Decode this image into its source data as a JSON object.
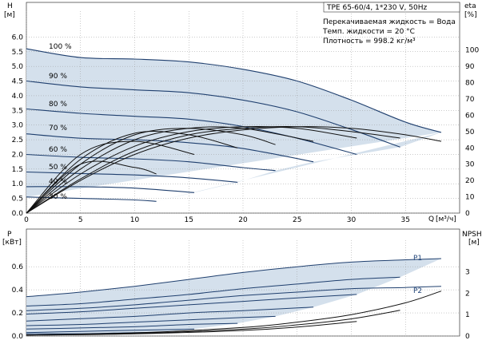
{
  "chart_data": [
    {
      "type": "line",
      "title": "TPE 65-60/4, 1*230 V, 50Hz",
      "ylabel": "H",
      "ylabel_unit": "[м]",
      "xlabel": "Q",
      "xlabel_unit": "[м³/ч]",
      "y2label": "eta",
      "y2label_unit": "[%]",
      "xlim": [
        0,
        40
      ],
      "ylim": [
        0,
        6.5
      ],
      "y2lim": [
        0,
        117
      ],
      "x_ticks": [
        "0",
        "5",
        "10",
        "15",
        "20",
        "25",
        "30",
        "35"
      ],
      "y_ticks": [
        "0.0",
        "0.5",
        "1.0",
        "1.5",
        "2.0",
        "2.5",
        "3.0",
        "3.5",
        "4.0",
        "4.5",
        "5.0",
        "5.5",
        "6.0"
      ],
      "y2_ticks": [
        "0",
        "10",
        "20",
        "30",
        "40",
        "50",
        "60",
        "70",
        "80",
        "90",
        "100"
      ],
      "grid": true,
      "info_lines": [
        "Перекачиваемая жидкость = Вода",
        "Темп. жидкости = 20 °C",
        "Плотность = 998.2 кг/м³"
      ],
      "speed_labels": [
        "100 %",
        "90 %",
        "80 %",
        "70 %",
        "60 %",
        "50 %",
        "40 %",
        "30 %"
      ],
      "series": [
        {
          "name": "100 %",
          "x": [
            0,
            5,
            10,
            15,
            20,
            25,
            30,
            35,
            38.3
          ],
          "y": [
            5.6,
            5.3,
            5.25,
            5.15,
            4.9,
            4.5,
            3.85,
            3.1,
            2.75
          ]
        },
        {
          "name": "90 %",
          "x": [
            0,
            5,
            10,
            15,
            20,
            25,
            30,
            34.5
          ],
          "y": [
            4.5,
            4.3,
            4.2,
            4.1,
            3.85,
            3.45,
            2.85,
            2.25
          ]
        },
        {
          "name": "80 %",
          "x": [
            0,
            5,
            10,
            15,
            20,
            25,
            30.5
          ],
          "y": [
            3.55,
            3.4,
            3.3,
            3.2,
            2.95,
            2.55,
            2.0
          ]
        },
        {
          "name": "70 %",
          "x": [
            0,
            5,
            10,
            15,
            20,
            26.5
          ],
          "y": [
            2.7,
            2.55,
            2.5,
            2.4,
            2.2,
            1.75
          ]
        },
        {
          "name": "60 %",
          "x": [
            0,
            5,
            10,
            15,
            20,
            23
          ],
          "y": [
            2.0,
            1.9,
            1.85,
            1.75,
            1.55,
            1.45
          ]
        },
        {
          "name": "50 %",
          "x": [
            0,
            5,
            10,
            15,
            19.5
          ],
          "y": [
            1.4,
            1.35,
            1.3,
            1.2,
            1.05
          ]
        },
        {
          "name": "40 %",
          "x": [
            0,
            5,
            10,
            15.5
          ],
          "y": [
            0.9,
            0.9,
            0.85,
            0.7
          ]
        },
        {
          "name": "30 %",
          "x": [
            0,
            5,
            10,
            12
          ],
          "y": [
            0.55,
            0.5,
            0.45,
            0.4
          ]
        }
      ],
      "eta_series": [
        {
          "name": "eta 100 %",
          "x": [
            0,
            5,
            10,
            15,
            20,
            25,
            30,
            35,
            38.3
          ],
          "y": [
            0,
            20,
            36,
            46,
            51,
            53,
            52,
            48,
            44
          ]
        },
        {
          "name": "eta 90 %",
          "x": [
            0,
            5,
            10,
            15,
            20,
            25,
            30,
            34.5
          ],
          "y": [
            0,
            21,
            38,
            48,
            52,
            53,
            50,
            46
          ]
        },
        {
          "name": "eta 80 %",
          "x": [
            0,
            5,
            10,
            15,
            20,
            25,
            30.5
          ],
          "y": [
            0,
            24,
            41,
            50,
            53,
            52,
            46
          ]
        },
        {
          "name": "eta 70 %",
          "x": [
            0,
            5,
            10,
            15,
            20,
            26.5
          ],
          "y": [
            0,
            27,
            45,
            52,
            52,
            44
          ]
        },
        {
          "name": "eta 60 %",
          "x": [
            0,
            5,
            10,
            15,
            20,
            23
          ],
          "y": [
            0,
            30,
            48,
            52,
            48,
            42
          ]
        },
        {
          "name": "eta 50 %",
          "x": [
            0,
            5,
            10,
            15,
            19.5
          ],
          "y": [
            0,
            33,
            49,
            48,
            40
          ]
        },
        {
          "name": "eta 40 %",
          "x": [
            0,
            5,
            10,
            15.5
          ],
          "y": [
            0,
            36,
            44,
            36
          ]
        },
        {
          "name": "eta 30 %",
          "x": [
            0,
            5,
            10,
            12
          ],
          "y": [
            0,
            30,
            28,
            24
          ]
        }
      ]
    },
    {
      "type": "line",
      "ylabel": "P",
      "ylabel_unit": "[кВт]",
      "y2label": "NPSH",
      "y2label_unit": "[м]",
      "xlim": [
        0,
        40
      ],
      "ylim": [
        0,
        0.76
      ],
      "y2lim": [
        0,
        4.1
      ],
      "y_ticks": [
        "0.0",
        "0.2",
        "0.4",
        "0.6"
      ],
      "y2_ticks": [
        "0",
        "1",
        "2",
        "3"
      ],
      "grid": true,
      "series": [
        {
          "name": "P1",
          "x": [
            0,
            5,
            10,
            15,
            20,
            25,
            30,
            35,
            38.3
          ],
          "y": [
            0.34,
            0.38,
            0.43,
            0.49,
            0.55,
            0.6,
            0.64,
            0.66,
            0.67
          ]
        },
        {
          "name": "P2",
          "x": [
            0,
            5,
            10,
            15,
            20,
            25,
            30,
            35,
            38.3
          ],
          "y": [
            0.22,
            0.24,
            0.27,
            0.31,
            0.35,
            0.38,
            0.41,
            0.42,
            0.43
          ]
        },
        {
          "name": "P1 90 %",
          "x": [
            0,
            5,
            10,
            15,
            20,
            25,
            30,
            34.5
          ],
          "y": [
            0.26,
            0.28,
            0.32,
            0.36,
            0.41,
            0.45,
            0.49,
            0.51
          ]
        },
        {
          "name": "P1 80 %",
          "x": [
            0,
            5,
            10,
            15,
            20,
            25,
            30.5
          ],
          "y": [
            0.19,
            0.21,
            0.24,
            0.27,
            0.3,
            0.33,
            0.36
          ]
        },
        {
          "name": "P1 70 %",
          "x": [
            0,
            5,
            10,
            15,
            20,
            26.5
          ],
          "y": [
            0.13,
            0.15,
            0.17,
            0.2,
            0.22,
            0.25
          ]
        },
        {
          "name": "P1 60 %",
          "x": [
            0,
            5,
            10,
            15,
            20,
            23
          ],
          "y": [
            0.09,
            0.1,
            0.12,
            0.14,
            0.16,
            0.17
          ]
        },
        {
          "name": "P1 50 %",
          "x": [
            0,
            5,
            10,
            15,
            19.5
          ],
          "y": [
            0.06,
            0.07,
            0.08,
            0.1,
            0.11
          ]
        },
        {
          "name": "P1 40 %",
          "x": [
            0,
            5,
            10,
            15.5
          ],
          "y": [
            0.03,
            0.04,
            0.05,
            0.06
          ]
        },
        {
          "name": "P1 30 %",
          "x": [
            0,
            5,
            10,
            12
          ],
          "y": [
            0.02,
            0.02,
            0.03,
            0.03
          ]
        }
      ],
      "npsh_series": [
        {
          "name": "NPSH 100 %",
          "x": [
            0,
            10,
            20,
            25,
            30,
            35,
            38.3
          ],
          "y": [
            0.05,
            0.15,
            0.4,
            0.65,
            1.0,
            1.55,
            2.1
          ]
        },
        {
          "name": "NPSH 90 %",
          "x": [
            0,
            10,
            20,
            25,
            30,
            34.5
          ],
          "y": [
            0.05,
            0.12,
            0.32,
            0.52,
            0.8,
            1.2
          ]
        },
        {
          "name": "NPSH 80 %",
          "x": [
            0,
            10,
            20,
            25,
            30.5
          ],
          "y": [
            0.04,
            0.1,
            0.26,
            0.42,
            0.68
          ]
        }
      ]
    }
  ]
}
